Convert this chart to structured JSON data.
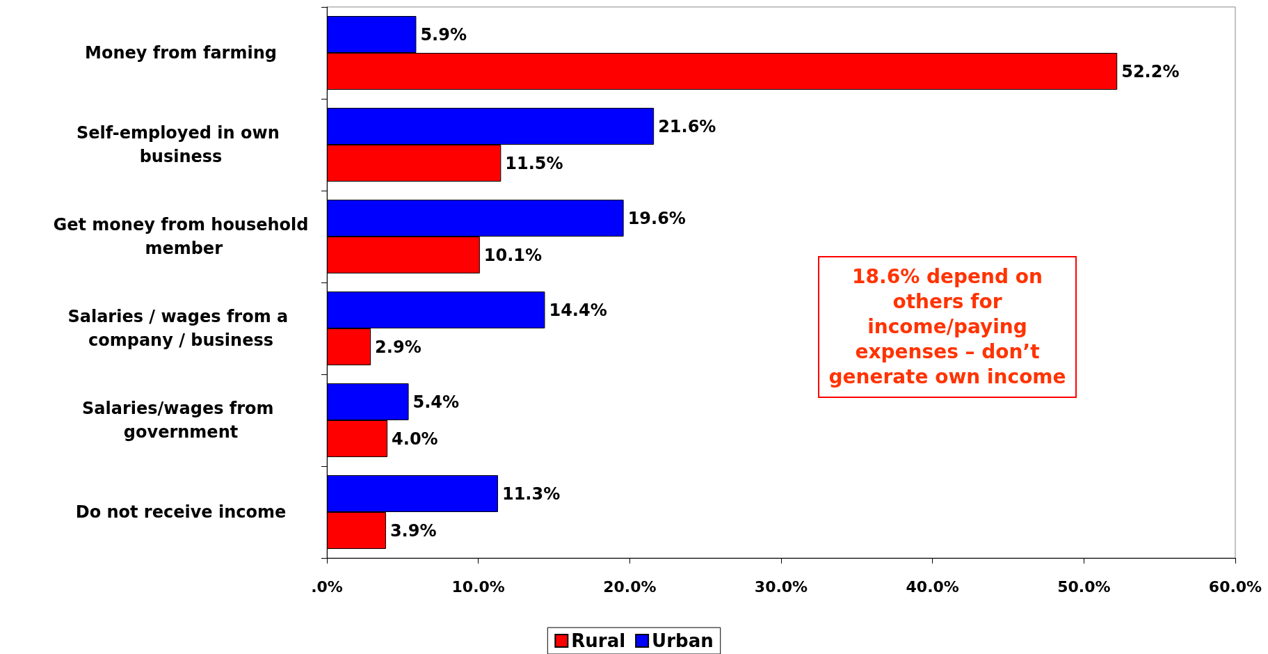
{
  "chart_data": {
    "type": "bar",
    "orientation": "horizontal",
    "categories": [
      "Money from farming",
      "Self-employed in own business",
      "Get money from household member",
      "Salaries / wages from a company / business",
      "Salaries/wages from government",
      "Do not receive income"
    ],
    "series": [
      {
        "name": "Rural",
        "color": "#ff0000",
        "values": [
          52.2,
          11.5,
          10.1,
          2.9,
          4.0,
          3.9
        ],
        "value_labels": [
          "52.2%",
          "11.5%",
          "10.1%",
          "2.9%",
          "4.0%",
          "3.9%"
        ]
      },
      {
        "name": "Urban",
        "color": "#0000ff",
        "values": [
          5.9,
          21.6,
          19.6,
          14.4,
          5.4,
          11.3
        ],
        "value_labels": [
          "5.9%",
          "21.6%",
          "19.6%",
          "14.4%",
          "5.4%",
          "11.3%"
        ]
      }
    ],
    "xlim": [
      0,
      60
    ],
    "xticks": [
      {
        "value": 0,
        "label": ".0%"
      },
      {
        "value": 10,
        "label": "10.0%"
      },
      {
        "value": 20,
        "label": "20.0%"
      },
      {
        "value": 30,
        "label": "30.0%"
      },
      {
        "value": 40,
        "label": "40.0%"
      },
      {
        "value": 50,
        "label": "50.0%"
      },
      {
        "value": 60,
        "label": "60.0%"
      }
    ],
    "annotations": [
      "18.6% depend on others for income/paying expenses – don’t generate own income"
    ],
    "legend": "bottom",
    "grid": false
  }
}
